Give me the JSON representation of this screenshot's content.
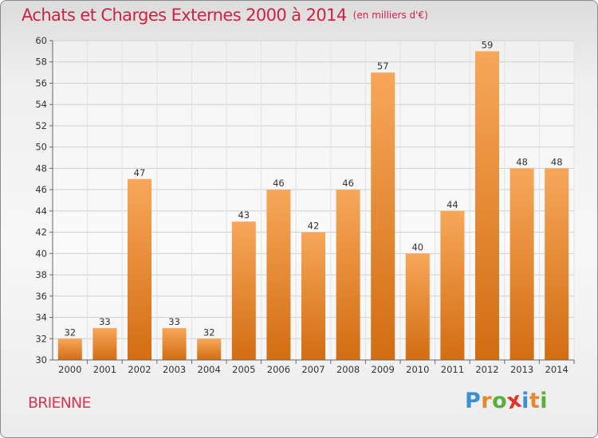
{
  "header": {
    "title": "Achats et Charges Externes 2000 à 2014",
    "subtitle": "(en milliers d'€)"
  },
  "location": "BRIENNE",
  "brand": {
    "name": "Proxiti",
    "letters": [
      {
        "char": "P",
        "color": "#3a8fd6"
      },
      {
        "char": "r",
        "color": "#e58a2a"
      },
      {
        "char": "o",
        "color": "#58b03a"
      },
      {
        "char": "x",
        "color": "#e0342b"
      },
      {
        "char": "i",
        "color": "#3a8fd6"
      },
      {
        "char": "t",
        "color": "#e58a2a"
      },
      {
        "char": "i",
        "color": "#58b03a"
      }
    ]
  },
  "colors": {
    "title": "#cc2244",
    "bar_light": "#f7a75a",
    "bar_dark": "#d26d12",
    "grid": "#cfcfcf"
  },
  "chart_data": {
    "type": "bar",
    "title": "Achats et Charges Externes 2000 à 2014",
    "subtitle": "(en milliers d'€)",
    "categories": [
      "2000",
      "2001",
      "2002",
      "2003",
      "2004",
      "2005",
      "2006",
      "2007",
      "2008",
      "2009",
      "2010",
      "2011",
      "2012",
      "2013",
      "2014"
    ],
    "values": [
      32,
      33,
      47,
      33,
      32,
      43,
      46,
      42,
      46,
      57,
      40,
      44,
      59,
      48,
      48
    ],
    "ylim": [
      30,
      60
    ],
    "ytick_step": 2,
    "grid": true,
    "xlabel": "",
    "ylabel": ""
  }
}
